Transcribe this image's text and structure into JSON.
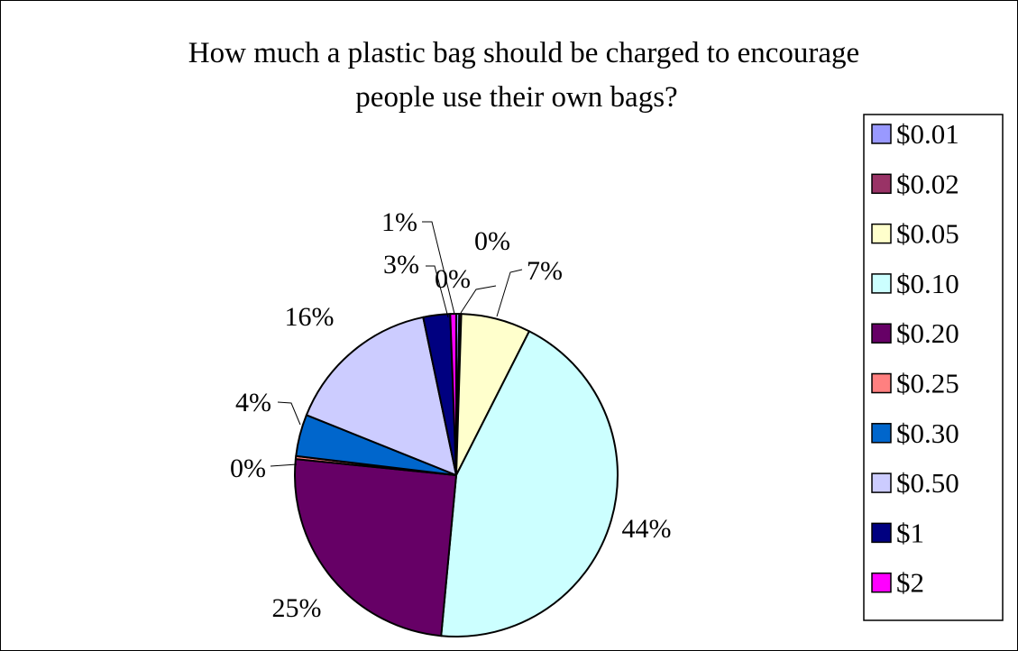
{
  "chart_data": {
    "type": "pie",
    "title_lines": [
      "How much a plastic bag should be charged to encourage",
      "people use their own bags?"
    ],
    "legend_position": "right",
    "categories": [
      "$0.01",
      "$0.02",
      "$0.05",
      "$0.10",
      "$0.20",
      "$0.25",
      "$0.30",
      "$0.50",
      "$1",
      "$2"
    ],
    "values": [
      0.3,
      0.2,
      7.0,
      44.2,
      25.2,
      0.3,
      4.2,
      15.7,
      2.7,
      0.6
    ],
    "labels": [
      "0%",
      "0%",
      "7%",
      "44%",
      "25%",
      "0%",
      "4%",
      "16%",
      "3%",
      "1%"
    ],
    "colors": [
      "#9999ff",
      "#993366",
      "#ffffcc",
      "#ccffff",
      "#660066",
      "#ff8080",
      "#0066cc",
      "#ccccff",
      "#000080",
      "#ff00ff"
    ]
  }
}
